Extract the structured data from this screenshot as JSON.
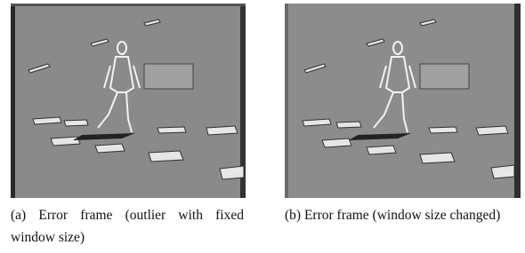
{
  "figures": [
    {
      "label": "(a)",
      "caption": "Error frame (outlier with fixed window size)"
    },
    {
      "label": "(b)",
      "caption": "Error frame (window size changed)"
    }
  ]
}
